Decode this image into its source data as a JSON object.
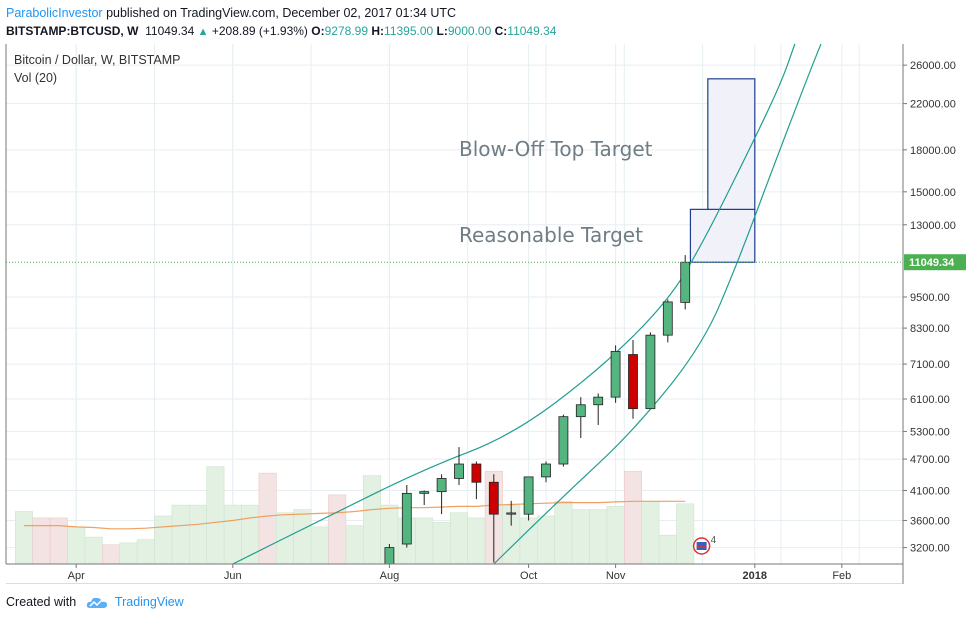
{
  "header": {
    "author": "ParabolicInvestor",
    "published_text": "published on TradingView.com, December 02, 2017 01:34 UTC",
    "symbol": "BITSTAMP:BTCUSD, W",
    "price": "11049.34",
    "change_arrow": "▲",
    "change": "+208.89 (+1.93%)",
    "o_label": "O:",
    "o_value": "9278.99",
    "h_label": "H:",
    "h_value": "11395.00",
    "l_label": "L:",
    "l_value": "9000.00",
    "c_label": "C:",
    "c_value": "11049.34"
  },
  "footer": {
    "created_with": "Created with",
    "brand": "TradingView",
    "logo_icon": "tradingview-cloud-icon"
  },
  "colors": {
    "up": "#54b580",
    "down": "#cc0000",
    "curve": "#1f9e8e",
    "box": "#1f3d8f",
    "box_fill": "#f1f2f9",
    "ma": "#f0a060",
    "grid": "#e6eef2",
    "price_line": "#4caf50",
    "vol_up": "#e3f1e3",
    "vol_down": "#f4e3e3"
  },
  "chart_data": {
    "type": "candlestick",
    "title": "Bitcoin / Dollar, W, BITSTAMP",
    "indicator": "Vol (20)",
    "scale": "log",
    "grid": true,
    "y_ticks": [
      "26000.00",
      "22000.00",
      "18000.00",
      "15000.00",
      "13000.00",
      "11049.34",
      "9500.00",
      "8300.00",
      "7100.00",
      "6100.00",
      "5300.00",
      "4700.00",
      "4100.00",
      "3600.00",
      "3200.00"
    ],
    "ylim": [
      2980,
      28500
    ],
    "last_price": 11049.34,
    "x_ticks": [
      {
        "label": "Apr",
        "week": 3
      },
      {
        "label": "Jun",
        "week": 12
      },
      {
        "label": "Aug",
        "week": 21
      },
      {
        "label": "Oct",
        "week": 29
      },
      {
        "label": "Nov",
        "week": 34
      },
      {
        "label": "2018",
        "week": 42
      },
      {
        "label": "Feb",
        "week": 47
      }
    ],
    "candles": [
      {
        "week": 21,
        "o": 2980,
        "h": 3250,
        "l": 2980,
        "c": 3200
      },
      {
        "week": 22,
        "o": 3250,
        "h": 4200,
        "l": 3200,
        "c": 4050
      },
      {
        "week": 23,
        "o": 4050,
        "h": 4100,
        "l": 3850,
        "c": 4080
      },
      {
        "week": 24,
        "o": 4080,
        "h": 4400,
        "l": 3700,
        "c": 4320
      },
      {
        "week": 25,
        "o": 4320,
        "h": 4950,
        "l": 4200,
        "c": 4600
      },
      {
        "week": 26,
        "o": 4600,
        "h": 4650,
        "l": 3950,
        "c": 4250
      },
      {
        "week": 27,
        "o": 4250,
        "h": 4400,
        "l": 3000,
        "c": 3700
      },
      {
        "week": 28,
        "o": 3700,
        "h": 3920,
        "l": 3520,
        "c": 3720
      },
      {
        "week": 29,
        "o": 3700,
        "h": 4350,
        "l": 3600,
        "c": 4350
      },
      {
        "week": 30,
        "o": 4350,
        "h": 4650,
        "l": 4250,
        "c": 4600
      },
      {
        "week": 31,
        "o": 4600,
        "h": 5700,
        "l": 4550,
        "c": 5650
      },
      {
        "week": 32,
        "o": 5650,
        "h": 6150,
        "l": 5150,
        "c": 5950
      },
      {
        "week": 33,
        "o": 5950,
        "h": 6250,
        "l": 5450,
        "c": 6150
      },
      {
        "week": 34,
        "o": 6150,
        "h": 7700,
        "l": 6000,
        "c": 7500
      },
      {
        "week": 35,
        "o": 7400,
        "h": 7880,
        "l": 5600,
        "c": 5850
      },
      {
        "week": 36,
        "o": 5850,
        "h": 8150,
        "l": 5850,
        "c": 8050
      },
      {
        "week": 37,
        "o": 8050,
        "h": 9400,
        "l": 7800,
        "c": 9300
      },
      {
        "week": 38,
        "o": 9280,
        "h": 11395,
        "l": 9000,
        "c": 11049
      }
    ],
    "volume": [
      {
        "week": 0,
        "v": 0.82,
        "up": true
      },
      {
        "week": 1,
        "v": 0.72,
        "up": false
      },
      {
        "week": 2,
        "v": 0.72,
        "up": false
      },
      {
        "week": 3,
        "v": 0.58,
        "up": true
      },
      {
        "week": 4,
        "v": 0.42,
        "up": true
      },
      {
        "week": 5,
        "v": 0.3,
        "up": false
      },
      {
        "week": 6,
        "v": 0.33,
        "up": true
      },
      {
        "week": 7,
        "v": 0.38,
        "up": true
      },
      {
        "week": 8,
        "v": 0.75,
        "up": true
      },
      {
        "week": 9,
        "v": 0.92,
        "up": true
      },
      {
        "week": 10,
        "v": 0.92,
        "up": true
      },
      {
        "week": 11,
        "v": 1.52,
        "up": true
      },
      {
        "week": 12,
        "v": 0.92,
        "up": true
      },
      {
        "week": 13,
        "v": 0.92,
        "up": true
      },
      {
        "week": 14,
        "v": 1.42,
        "up": false
      },
      {
        "week": 15,
        "v": 0.8,
        "up": true
      },
      {
        "week": 16,
        "v": 0.85,
        "up": true
      },
      {
        "week": 17,
        "v": 0.58,
        "up": true
      },
      {
        "week": 18,
        "v": 1.08,
        "up": false
      },
      {
        "week": 19,
        "v": 0.6,
        "up": true
      },
      {
        "week": 20,
        "v": 1.38,
        "up": true
      },
      {
        "week": 21,
        "v": 0.92,
        "up": true
      },
      {
        "week": 22,
        "v": 0.72,
        "up": true
      },
      {
        "week": 23,
        "v": 0.72,
        "up": true
      },
      {
        "week": 24,
        "v": 0.65,
        "up": true
      },
      {
        "week": 25,
        "v": 0.8,
        "up": true
      },
      {
        "week": 26,
        "v": 0.72,
        "up": true
      },
      {
        "week": 27,
        "v": 1.45,
        "up": false
      },
      {
        "week": 28,
        "v": 0.92,
        "up": true
      },
      {
        "week": 29,
        "v": 0.72,
        "up": true
      },
      {
        "week": 30,
        "v": 0.75,
        "up": true
      },
      {
        "week": 31,
        "v": 0.98,
        "up": true
      },
      {
        "week": 32,
        "v": 0.85,
        "up": true
      },
      {
        "week": 33,
        "v": 0.85,
        "up": true
      },
      {
        "week": 34,
        "v": 0.9,
        "up": true
      },
      {
        "week": 35,
        "v": 1.45,
        "up": false
      },
      {
        "week": 36,
        "v": 0.98,
        "up": true
      },
      {
        "week": 37,
        "v": 0.45,
        "up": true
      },
      {
        "week": 38,
        "v": 0.94,
        "up": true
      }
    ],
    "volume_ma": [
      0.6,
      0.6,
      0.6,
      0.58,
      0.57,
      0.55,
      0.55,
      0.56,
      0.58,
      0.6,
      0.62,
      0.65,
      0.68,
      0.72,
      0.75,
      0.77,
      0.78,
      0.79,
      0.8,
      0.82,
      0.85,
      0.87,
      0.88,
      0.88,
      0.89,
      0.9,
      0.9,
      0.92,
      0.93,
      0.94,
      0.95,
      0.96,
      0.96,
      0.96,
      0.97,
      0.98,
      0.98,
      0.98,
      0.98
    ],
    "curves": [
      {
        "name": "upper-parabola",
        "points": [
          [
            12.0,
            2980
          ],
          [
            17.0,
            3600
          ],
          [
            23.0,
            4500
          ],
          [
            28.0,
            5200
          ],
          [
            33.0,
            6900
          ],
          [
            37.0,
            9300
          ],
          [
            39.0,
            12000
          ],
          [
            41.5,
            17500
          ],
          [
            43.5,
            24000
          ],
          [
            44.3,
            28500
          ]
        ]
      },
      {
        "name": "lower-parabola",
        "points": [
          [
            27.0,
            2980
          ],
          [
            31.0,
            4000
          ],
          [
            35.0,
            5300
          ],
          [
            39.0,
            7700
          ],
          [
            41.0,
            11000
          ],
          [
            43.0,
            16500
          ],
          [
            45.0,
            24500
          ],
          [
            45.8,
            28500
          ]
        ]
      }
    ],
    "targets": [
      {
        "label": "Reasonable Target",
        "week_start": 38.3,
        "week_end": 42.0,
        "low": 11049,
        "high": 13900
      },
      {
        "label": "Blow-Off Top Target",
        "week_start": 39.3,
        "week_end": 42.0,
        "low": 13900,
        "high": 24500
      }
    ],
    "events": [
      {
        "label": "4",
        "week": 39,
        "icon": "us-flag-event-icon"
      }
    ]
  }
}
